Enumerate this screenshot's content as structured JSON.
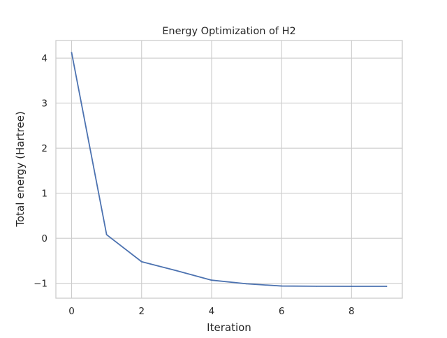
{
  "chart_data": {
    "type": "line",
    "title": "Energy Optimization of H2",
    "xlabel": "Iteration",
    "ylabel": "Total energy (Hartree)",
    "x": [
      0,
      1,
      2,
      3,
      4,
      5,
      6,
      7,
      8,
      9
    ],
    "series": [
      {
        "values": [
          4.12,
          0.08,
          -0.52,
          -0.72,
          -0.93,
          -1.01,
          -1.06,
          -1.065,
          -1.067,
          -1.067
        ],
        "color": "#4c72b0"
      }
    ],
    "xlim": [
      -0.45,
      9.45
    ],
    "ylim": [
      -1.33,
      4.39
    ],
    "xticks": [
      0,
      2,
      4,
      6,
      8
    ],
    "xtick_labels": [
      "0",
      "2",
      "4",
      "6",
      "8"
    ],
    "yticks": [
      -1,
      0,
      1,
      2,
      3,
      4
    ],
    "ytick_labels": [
      "−1",
      "0",
      "1",
      "2",
      "3",
      "4"
    ],
    "grid": true,
    "legend": "none"
  }
}
